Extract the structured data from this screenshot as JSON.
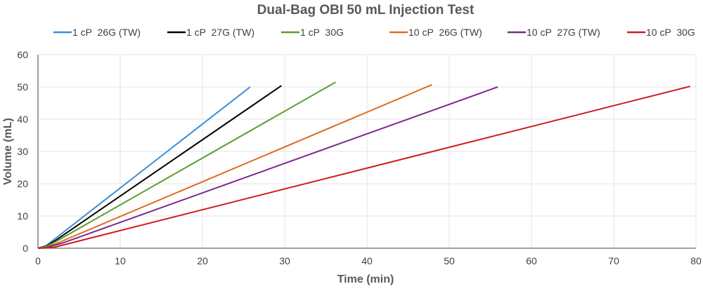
{
  "chart_data": {
    "type": "line",
    "title": "Dual-Bag OBI 50 mL Injection Test",
    "xlabel": "Time (min)",
    "ylabel": "Volume (mL)",
    "xlim": [
      0,
      80
    ],
    "ylim": [
      0,
      60
    ],
    "xticks": [
      0,
      10,
      20,
      30,
      40,
      50,
      60,
      70,
      80
    ],
    "yticks": [
      0,
      10,
      20,
      30,
      40,
      50,
      60
    ],
    "grid": true,
    "legend_position": "top",
    "series": [
      {
        "name": "1 cP  26G (TW)",
        "color": "#3a8fd6",
        "points": [
          [
            0,
            0
          ],
          [
            1,
            0.8
          ],
          [
            2,
            2.8
          ],
          [
            25.8,
            50
          ]
        ]
      },
      {
        "name": "1 cP  27G (TW)",
        "color": "#000000",
        "points": [
          [
            0,
            0
          ],
          [
            1,
            0.6
          ],
          [
            2,
            2.2
          ],
          [
            29.6,
            50.4
          ]
        ]
      },
      {
        "name": "1 cP  30G",
        "color": "#5a9e2f",
        "points": [
          [
            0,
            0
          ],
          [
            1,
            0.5
          ],
          [
            2,
            1.8
          ],
          [
            36.2,
            51.5
          ]
        ]
      },
      {
        "name": "10 cP  26G (TW)",
        "color": "#e06a20",
        "points": [
          [
            0,
            0
          ],
          [
            1,
            0.3
          ],
          [
            2,
            1.2
          ],
          [
            47.9,
            50.7
          ]
        ]
      },
      {
        "name": "10 cP  27G (TW)",
        "color": "#7b2a8a",
        "points": [
          [
            0,
            0
          ],
          [
            1,
            0.2
          ],
          [
            3,
            1.6
          ],
          [
            55.9,
            50
          ]
        ]
      },
      {
        "name": "10 cP  30G",
        "color": "#d01c1c",
        "points": [
          [
            0,
            0
          ],
          [
            2,
            0.3
          ],
          [
            4,
            1.6
          ],
          [
            79.3,
            50.2
          ]
        ]
      }
    ]
  }
}
